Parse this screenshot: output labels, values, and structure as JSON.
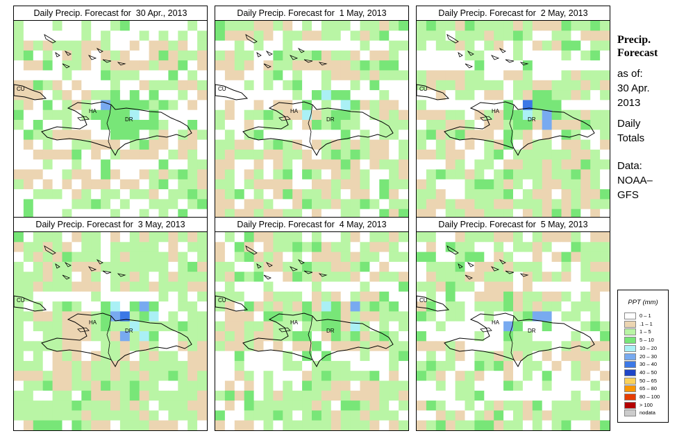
{
  "panels": [
    {
      "title": "Daily Precip. Forecast for  30 Apr., 2013",
      "seed": 11,
      "wet": 0.25,
      "bandRows": [
        0,
        3,
        6,
        9,
        12
      ]
    },
    {
      "title": "Daily Precip. Forecast for  1 May, 2013",
      "seed": 23,
      "wet": 0.45,
      "bandRows": [
        1,
        4,
        7
      ]
    },
    {
      "title": "Daily Precip. Forecast for  2 May, 2013",
      "seed": 37,
      "wet": 0.55,
      "bandRows": [
        2,
        5
      ]
    },
    {
      "title": "Daily Precip. Forecast for  3 May, 2013",
      "seed": 41,
      "wet": 0.65,
      "bandRows": [
        4
      ]
    },
    {
      "title": "Daily Precip. Forecast for  4 May, 2013",
      "seed": 53,
      "wet": 0.6,
      "bandRows": [
        3,
        8
      ]
    },
    {
      "title": "Daily Precip. Forecast for  5 May, 2013",
      "seed": 67,
      "wet": 0.5,
      "bandRows": [
        6,
        10
      ]
    }
  ],
  "map_labels": {
    "cu": "CU",
    "ha": "HA",
    "dr": "DR"
  },
  "sidebar": {
    "title_line1": "Precip.",
    "title_line2": "Forecast",
    "asof": "as of:",
    "date_line1": "30 Apr.",
    "date_line2": "2013",
    "totals_line1": "Daily",
    "totals_line2": "Totals",
    "data_line1": "Data:",
    "data_line2": "NOAA–",
    "data_line3": "GFS"
  },
  "legend": {
    "title": "PPT (mm)",
    "items": [
      {
        "label": "0 – 1",
        "color": "#ffffff"
      },
      {
        "label": ".1 – 1",
        "color": "#ecd5b2"
      },
      {
        "label": "1 – 5",
        "color": "#b9f5a5"
      },
      {
        "label": "5 – 10",
        "color": "#78e678"
      },
      {
        "label": "10 – 20",
        "color": "#aaf0f5"
      },
      {
        "label": "20 – 30",
        "color": "#78aaf0"
      },
      {
        "label": "30 – 40",
        "color": "#3c78e6"
      },
      {
        "label": "40 – 50",
        "color": "#1e46c8"
      },
      {
        "label": "50 – 65",
        "color": "#fad25a"
      },
      {
        "label": "65 – 80",
        "color": "#fa9600"
      },
      {
        "label": "80 – 100",
        "color": "#e63c00"
      },
      {
        "label": "> 100",
        "color": "#b40000"
      },
      {
        "label": "nodata",
        "color": "#cccccc"
      }
    ]
  }
}
